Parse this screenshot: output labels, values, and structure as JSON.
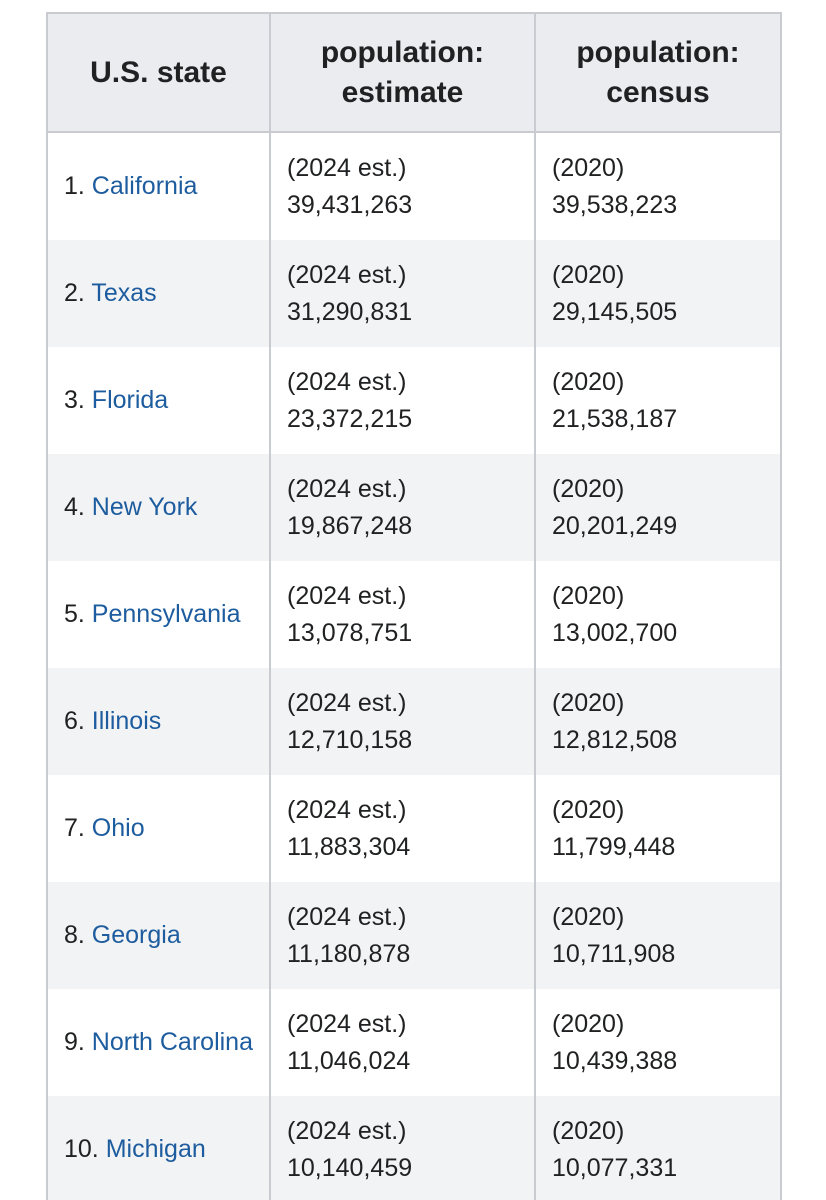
{
  "table": {
    "headers": {
      "state": "U.S. state",
      "estimate_line1": "population:",
      "estimate_line2": "estimate",
      "census_line1": "population:",
      "census_line2": "census"
    },
    "rows": [
      {
        "rank": "1.",
        "state": "California",
        "est_label": "(2024 est.)",
        "est_value": "39,431,263",
        "census_label": "(2020)",
        "census_value": "39,538,223"
      },
      {
        "rank": "2.",
        "state": "Texas",
        "est_label": "(2024 est.)",
        "est_value": "31,290,831",
        "census_label": "(2020)",
        "census_value": "29,145,505"
      },
      {
        "rank": "3.",
        "state": "Florida",
        "est_label": "(2024 est.)",
        "est_value": "23,372,215",
        "census_label": "(2020)",
        "census_value": "21,538,187"
      },
      {
        "rank": "4.",
        "state": "New York",
        "est_label": "(2024 est.)",
        "est_value": "19,867,248",
        "census_label": "(2020)",
        "census_value": "20,201,249"
      },
      {
        "rank": "5.",
        "state": "Pennsylvania",
        "est_label": "(2024 est.)",
        "est_value": "13,078,751",
        "census_label": "(2020)",
        "census_value": "13,002,700"
      },
      {
        "rank": "6.",
        "state": "Illinois",
        "est_label": "(2024 est.)",
        "est_value": "12,710,158",
        "census_label": "(2020)",
        "census_value": "12,812,508"
      },
      {
        "rank": "7.",
        "state": "Ohio",
        "est_label": "(2024 est.)",
        "est_value": "11,883,304",
        "census_label": "(2020)",
        "census_value": "11,799,448"
      },
      {
        "rank": "8.",
        "state": "Georgia",
        "est_label": "(2024 est.)",
        "est_value": "11,180,878",
        "census_label": "(2020)",
        "census_value": "10,711,908"
      },
      {
        "rank": "9.",
        "state": "North Carolina",
        "est_label": "(2024 est.)",
        "est_value": "11,046,024",
        "census_label": "(2020)",
        "census_value": "10,439,388"
      },
      {
        "rank": "10.",
        "state": "Michigan",
        "est_label": "(2024 est.)",
        "est_value": "10,140,459",
        "census_label": "(2020)",
        "census_value": "10,077,331"
      }
    ]
  },
  "colors": {
    "link": "#1d5c9e",
    "header_bg": "#eaecf0",
    "stripe_bg": "#f2f3f4",
    "border": "#c8ccd1"
  }
}
